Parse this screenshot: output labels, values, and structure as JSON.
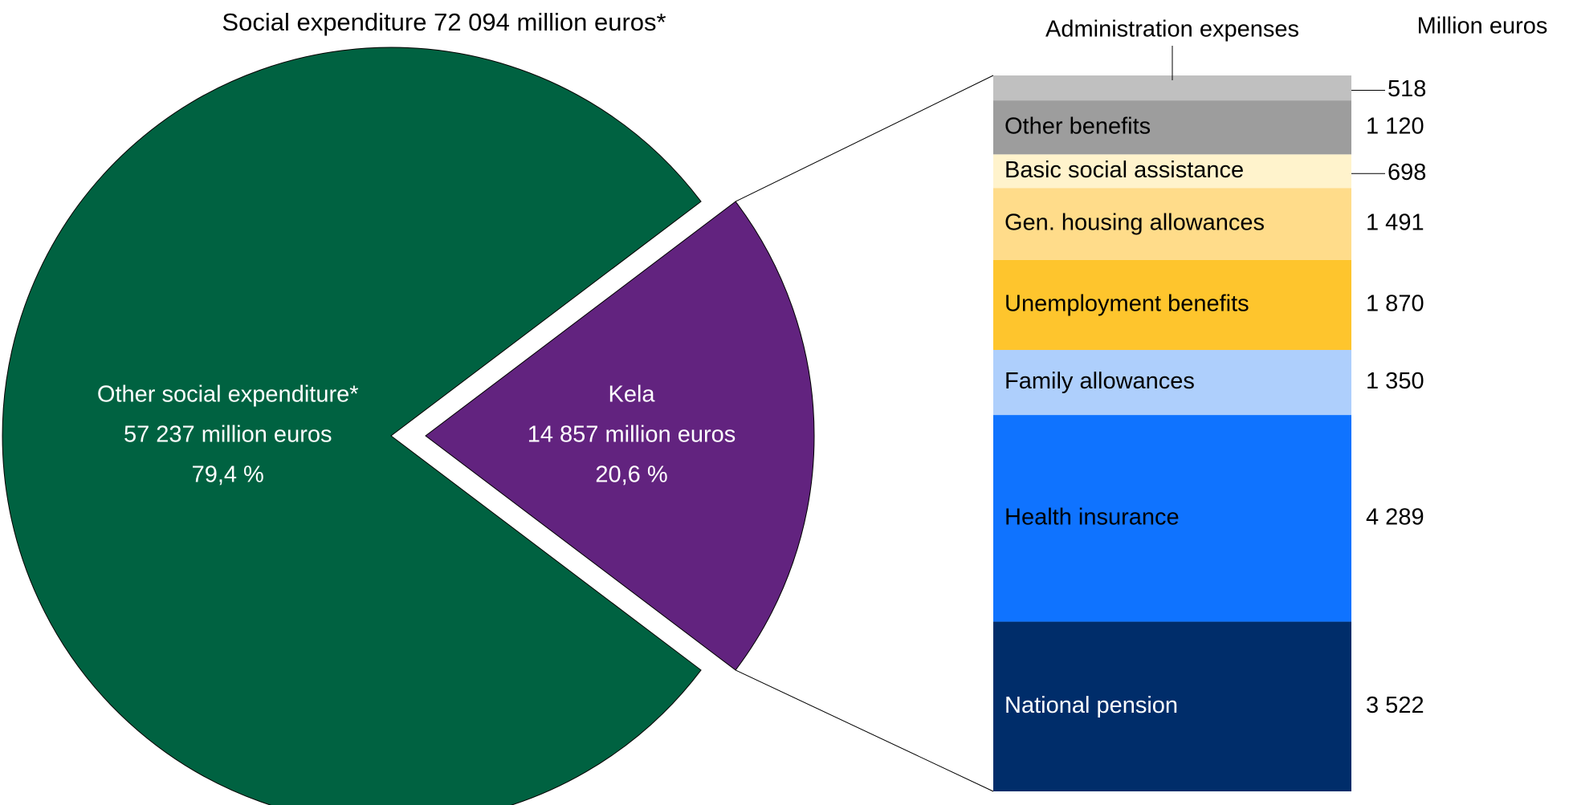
{
  "chart_data": [
    {
      "type": "pie",
      "title": "Social expenditure 72 094 million euros*",
      "categories": [
        "Other social expenditure*",
        "Kela"
      ],
      "values": [
        57237,
        14857
      ],
      "value_labels": [
        "57 237 million euros",
        "14 857 million euros"
      ],
      "percent_labels": [
        "79,4 %",
        "20,6 %"
      ],
      "colors": [
        "#006241",
        "#62237f"
      ],
      "exploded": "Kela"
    },
    {
      "type": "stacked-bar",
      "axis_label": "Million euros",
      "categories": [
        "National pension",
        "Health insurance",
        "Family allowances",
        "Unemployment benefits",
        "Gen. housing allowances",
        "Basic social assistance",
        "Other benefits",
        "Administration expenses"
      ],
      "values": [
        3522,
        4289,
        1350,
        1870,
        1491,
        698,
        1120,
        518
      ],
      "value_labels": [
        "3 522",
        "4 289",
        "1 350",
        "1 870",
        "1 491",
        "698",
        "1 120",
        "518"
      ],
      "colors": [
        "#002d6a",
        "#0f73ff",
        "#aecffc",
        "#fec52d",
        "#ffdc8a",
        "#fff3cc",
        "#9d9d9d",
        "#c0c0c0"
      ]
    }
  ]
}
